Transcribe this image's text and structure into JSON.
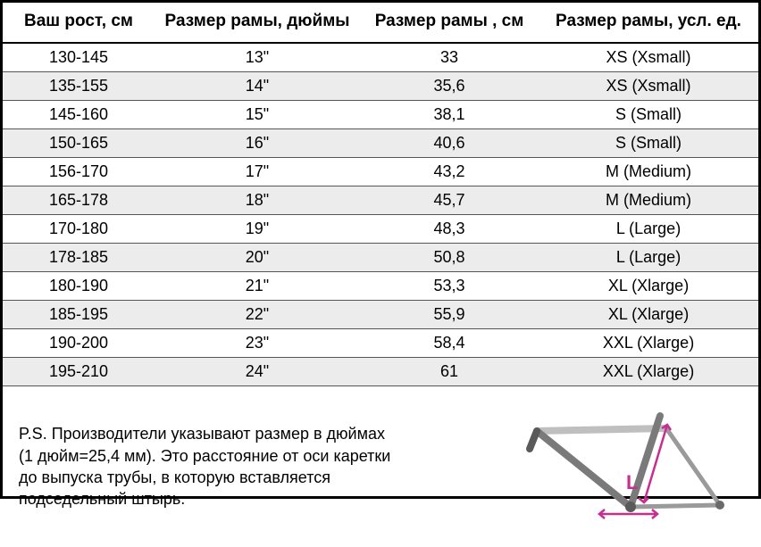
{
  "table": {
    "headers": {
      "height": "Ваш рост, см",
      "inches": "Размер рамы, дюймы",
      "cm": "Размер рамы , см",
      "sizecode": "Размер рамы, усл. ед."
    },
    "rows": [
      {
        "height": "130-145",
        "inches": "13\"",
        "cm": "33",
        "size": "XS (Xsmall)",
        "alt": false
      },
      {
        "height": "135-155",
        "inches": "14\"",
        "cm": "35,6",
        "size": "XS (Xsmall)",
        "alt": true
      },
      {
        "height": "145-160",
        "inches": "15\"",
        "cm": "38,1",
        "size": "S (Small)",
        "alt": false
      },
      {
        "height": "150-165",
        "inches": "16\"",
        "cm": "40,6",
        "size": "S (Small)",
        "alt": true
      },
      {
        "height": "156-170",
        "inches": "17\"",
        "cm": "43,2",
        "size": "M (Medium)",
        "alt": false
      },
      {
        "height": "165-178",
        "inches": "18\"",
        "cm": "45,7",
        "size": "M (Medium)",
        "alt": true
      },
      {
        "height": "170-180",
        "inches": "19\"",
        "cm": "48,3",
        "size": "L (Large)",
        "alt": false
      },
      {
        "height": "178-185",
        "inches": "20\"",
        "cm": "50,8",
        "size": "L (Large)",
        "alt": true
      },
      {
        "height": "180-190",
        "inches": "21\"",
        "cm": "53,3",
        "size": "XL (Xlarge)",
        "alt": false
      },
      {
        "height": "185-195",
        "inches": "22\"",
        "cm": "55,9",
        "size": "XL (Xlarge)",
        "alt": true
      },
      {
        "height": "190-200",
        "inches": "23\"",
        "cm": "58,4",
        "size": "XXL (Xlarge)",
        "alt": false
      },
      {
        "height": "195-210",
        "inches": "24\"",
        "cm": "61",
        "size": "XXL (Xlarge)",
        "alt": true
      }
    ],
    "row_alt_bg": "#ececec",
    "border_color": "#000000",
    "row_border_color": "#555555",
    "header_fontsize": 19,
    "cell_fontsize": 18
  },
  "footnote": {
    "text": "P.S. Производители указывают размер в дюймах (1 дюйм=25,4 мм). Это расстояние от оси каретки до выпуска трубы, в которую вставляется подседельный штырь.",
    "fontsize": 18
  },
  "diagram": {
    "frame_stroke": "#7a7a7a",
    "frame_stroke_light": "#bfbfbf",
    "measure_color": "#c72e8f",
    "label": "L",
    "label_color": "#c72e8f"
  }
}
